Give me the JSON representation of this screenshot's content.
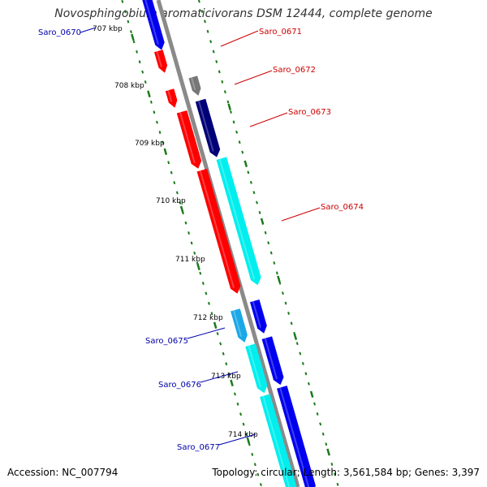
{
  "title": "Novosphingobium aromaticivorans DSM 12444, complete genome",
  "footer": {
    "accession_label": "Accession:",
    "accession": "NC_007794",
    "topology_label": "Topology:",
    "topology": "circular",
    "length_label": "Length:",
    "length": "3,561,584 bp",
    "genes_label": "Genes:",
    "genes": "3,397"
  },
  "colors": {
    "backbone": "#8a8a8a",
    "tick": "#1a7a1a",
    "label_red": "#cc0000",
    "label_blue": "#0000aa",
    "red": "#ff0000",
    "blue": "#0000ee",
    "navy": "#000077",
    "cyan": "#00eeee",
    "skyblue": "#1aa8e6",
    "gray": "#777777"
  },
  "scale_marks": [
    "707 kbp",
    "708 kbp",
    "709 kbp",
    "710 kbp",
    "711 kbp",
    "712 kbp",
    "713 kbp",
    "714 kbp"
  ],
  "gene_labels": [
    {
      "name": "Saro_0670",
      "color": "blue"
    },
    {
      "name": "Saro_0671",
      "color": "red"
    },
    {
      "name": "Saro_0672",
      "color": "red"
    },
    {
      "name": "Saro_0673",
      "color": "red"
    },
    {
      "name": "Saro_0674",
      "color": "red"
    },
    {
      "name": "Saro_0675",
      "color": "blue"
    },
    {
      "name": "Saro_0676",
      "color": "blue"
    },
    {
      "name": "Saro_0677",
      "color": "blue"
    }
  ],
  "features": [
    {
      "color": "blue"
    },
    {
      "color": "red"
    },
    {
      "color": "red"
    },
    {
      "color": "gray"
    },
    {
      "color": "red"
    },
    {
      "color": "navy"
    },
    {
      "color": "red"
    },
    {
      "color": "cyan"
    },
    {
      "color": "skyblue"
    },
    {
      "color": "blue"
    },
    {
      "color": "cyan"
    },
    {
      "color": "blue"
    },
    {
      "color": "cyan"
    },
    {
      "color": "blue"
    }
  ]
}
